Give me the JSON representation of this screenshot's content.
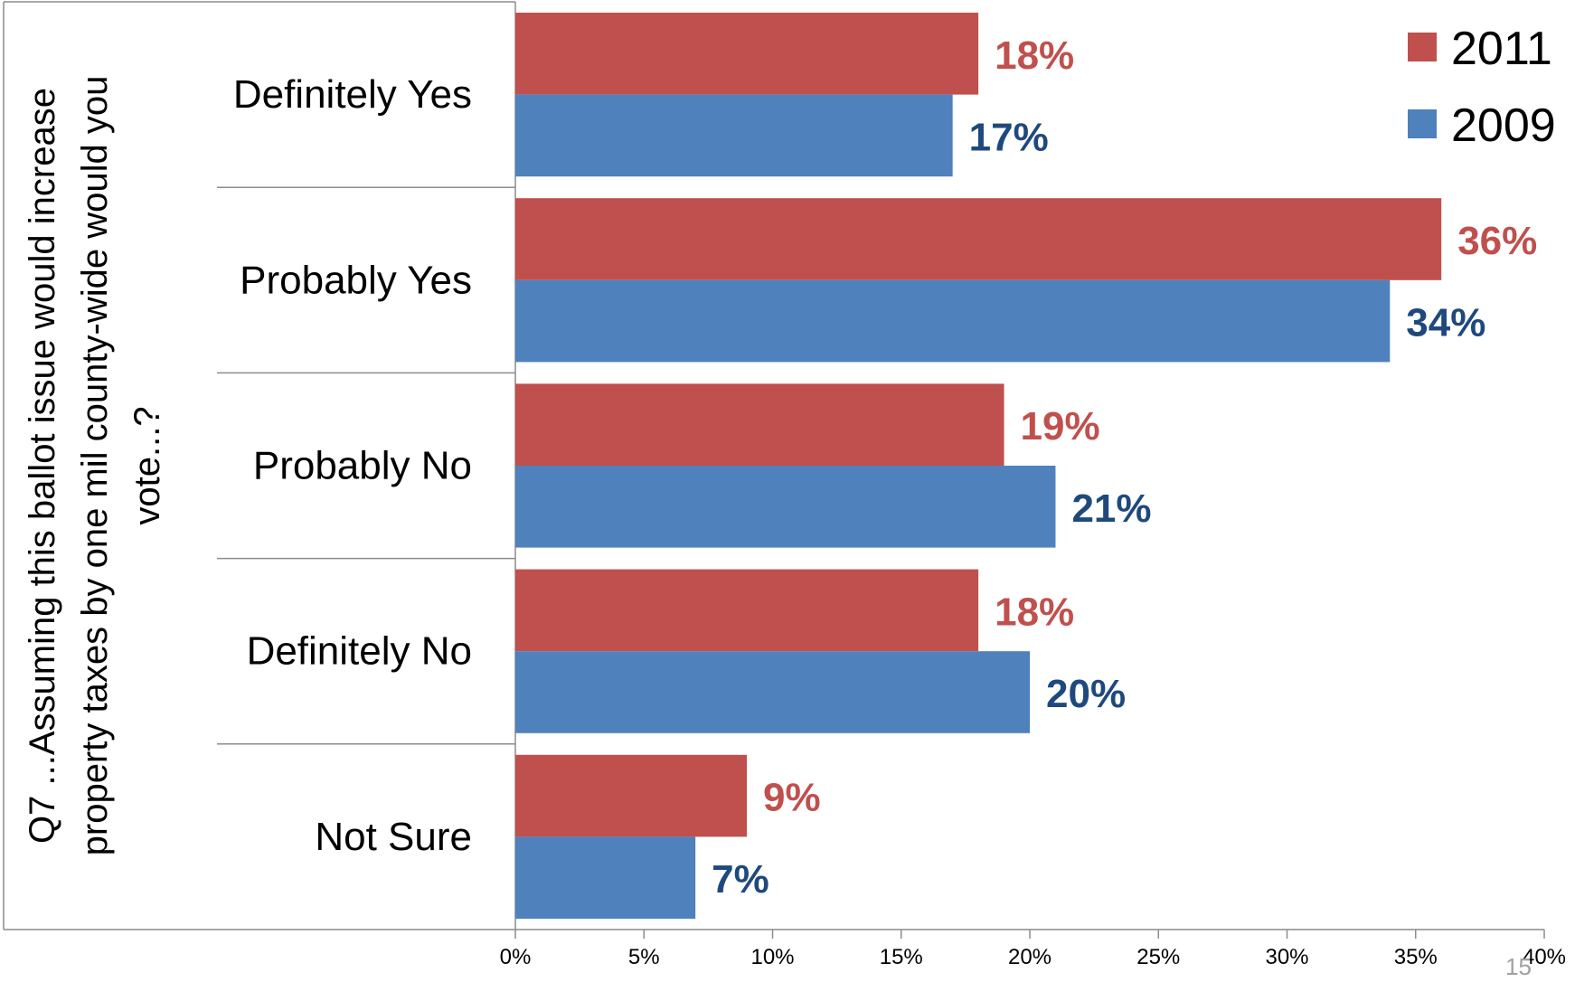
{
  "chart_data": {
    "type": "bar",
    "orientation": "horizontal",
    "ylabel": "Q7 ...Assuming this ballot issue would increase property taxes by one mil county-wide would you vote...?",
    "ylabel_lines": [
      "Q7 ...Assuming this ballot issue would increase",
      "property taxes by one mil county-wide would you",
      "vote...?"
    ],
    "categories": [
      "Definitely Yes",
      "Probably Yes",
      "Probably No",
      "Definitely No",
      "Not Sure"
    ],
    "series": [
      {
        "name": "2011",
        "color": "#C0504D",
        "label_color": "#C0504D",
        "values": [
          18,
          36,
          19,
          18,
          9
        ]
      },
      {
        "name": "2009",
        "color": "#4F81BD",
        "label_color": "#1F497D",
        "values": [
          17,
          34,
          21,
          20,
          7
        ]
      }
    ],
    "xlim": [
      0,
      40
    ],
    "xticks": [
      0,
      5,
      10,
      15,
      20,
      25,
      30,
      35,
      40
    ],
    "tick_suffix": "%",
    "value_suffix": "%",
    "grid": false,
    "legend": {
      "position": "top-right"
    }
  },
  "page_number": "15"
}
